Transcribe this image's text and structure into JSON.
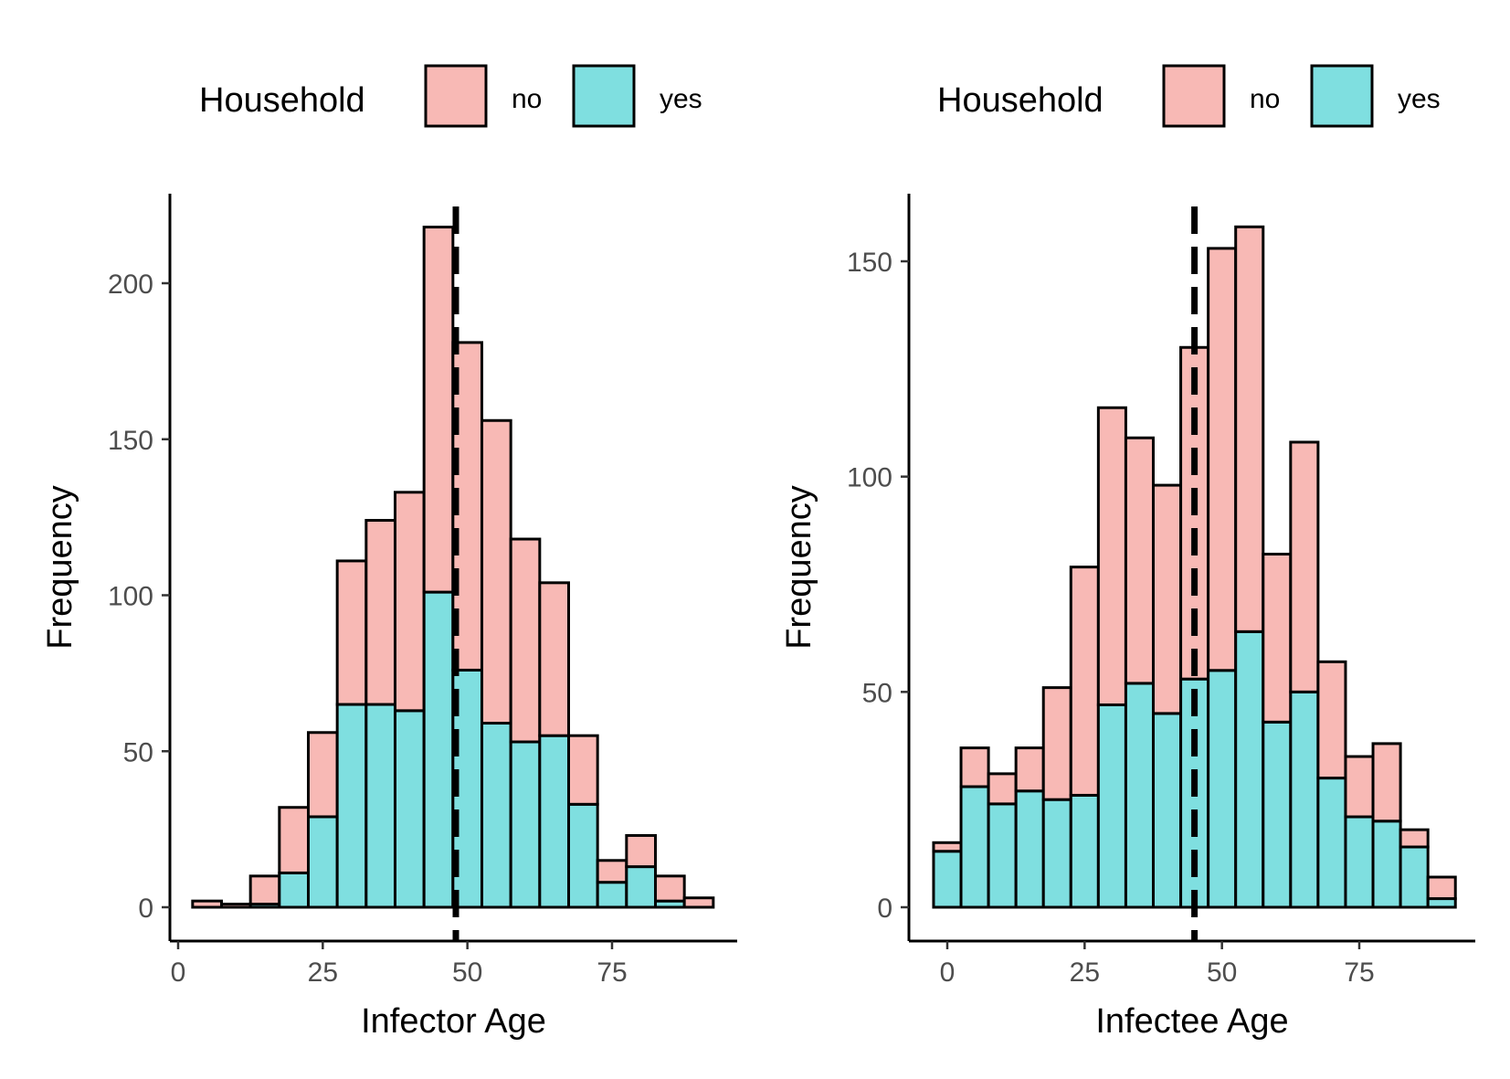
{
  "colors": {
    "no": "#F8B9B5",
    "yes": "#7FDFE0",
    "outline": "#000000"
  },
  "chart_data": [
    {
      "type": "bar",
      "stacked": true,
      "xlabel": "Infector Age",
      "ylabel": "Frequency",
      "xlim": [
        0,
        90
      ],
      "ylim": [
        0,
        220
      ],
      "xticks": [
        0,
        25,
        50,
        75
      ],
      "yticks": [
        0,
        50,
        100,
        150,
        200
      ],
      "vline": 48,
      "legend": {
        "title": "Household",
        "entries": [
          "no",
          "yes"
        ],
        "position": "top"
      },
      "bins": [
        {
          "x": 5,
          "no": 2,
          "yes": 0
        },
        {
          "x": 10,
          "no": 1,
          "yes": 0
        },
        {
          "x": 15,
          "no": 9,
          "yes": 1
        },
        {
          "x": 20,
          "no": 21,
          "yes": 11
        },
        {
          "x": 25,
          "no": 27,
          "yes": 29
        },
        {
          "x": 30,
          "no": 46,
          "yes": 65
        },
        {
          "x": 35,
          "no": 59,
          "yes": 65
        },
        {
          "x": 40,
          "no": 70,
          "yes": 63
        },
        {
          "x": 45,
          "no": 117,
          "yes": 101
        },
        {
          "x": 50,
          "no": 105,
          "yes": 76
        },
        {
          "x": 55,
          "no": 97,
          "yes": 59
        },
        {
          "x": 60,
          "no": 65,
          "yes": 53
        },
        {
          "x": 65,
          "no": 49,
          "yes": 55
        },
        {
          "x": 70,
          "no": 22,
          "yes": 33
        },
        {
          "x": 75,
          "no": 7,
          "yes": 8
        },
        {
          "x": 80,
          "no": 10,
          "yes": 13
        },
        {
          "x": 85,
          "no": 8,
          "yes": 2
        },
        {
          "x": 90,
          "no": 3,
          "yes": 0
        }
      ]
    },
    {
      "type": "bar",
      "stacked": true,
      "xlabel": "Infectee Age",
      "ylabel": "Frequency",
      "xlim": [
        0,
        90
      ],
      "ylim": [
        0,
        160
      ],
      "xticks": [
        0,
        25,
        50,
        75
      ],
      "yticks": [
        0,
        50,
        100,
        150
      ],
      "vline": 45,
      "legend": {
        "title": "Household",
        "entries": [
          "no",
          "yes"
        ],
        "position": "top"
      },
      "bins": [
        {
          "x": 0,
          "no": 2,
          "yes": 13
        },
        {
          "x": 5,
          "no": 9,
          "yes": 28
        },
        {
          "x": 10,
          "no": 7,
          "yes": 24
        },
        {
          "x": 15,
          "no": 10,
          "yes": 27
        },
        {
          "x": 20,
          "no": 26,
          "yes": 25
        },
        {
          "x": 25,
          "no": 53,
          "yes": 26
        },
        {
          "x": 30,
          "no": 69,
          "yes": 47
        },
        {
          "x": 35,
          "no": 57,
          "yes": 52
        },
        {
          "x": 40,
          "no": 53,
          "yes": 45
        },
        {
          "x": 45,
          "no": 77,
          "yes": 53
        },
        {
          "x": 50,
          "no": 98,
          "yes": 55
        },
        {
          "x": 55,
          "no": 94,
          "yes": 64
        },
        {
          "x": 60,
          "no": 39,
          "yes": 43
        },
        {
          "x": 65,
          "no": 58,
          "yes": 50
        },
        {
          "x": 70,
          "no": 27,
          "yes": 30
        },
        {
          "x": 75,
          "no": 14,
          "yes": 21
        },
        {
          "x": 80,
          "no": 18,
          "yes": 20
        },
        {
          "x": 85,
          "no": 4,
          "yes": 14
        },
        {
          "x": 90,
          "no": 5,
          "yes": 2
        }
      ]
    }
  ]
}
